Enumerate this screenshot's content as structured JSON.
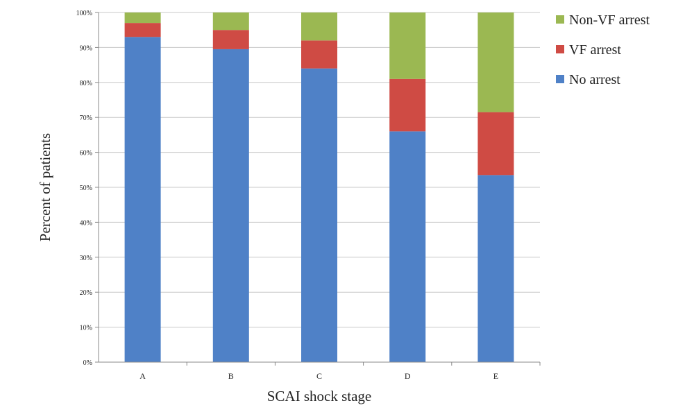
{
  "chart_data": {
    "type": "bar",
    "stacked": true,
    "categories": [
      "A",
      "B",
      "C",
      "D",
      "E"
    ],
    "series": [
      {
        "name": "No arrest",
        "color": "#4f81c7",
        "values": [
          93,
          89.5,
          84,
          66,
          53.5
        ]
      },
      {
        "name": "VF arrest",
        "color": "#cf4b44",
        "values": [
          4,
          5.5,
          8,
          15,
          18
        ]
      },
      {
        "name": "Non-VF arrest",
        "color": "#9bb852",
        "values": [
          3,
          5,
          8,
          19,
          28.5
        ]
      }
    ],
    "xlabel": "SCAI shock stage",
    "ylabel": "Percent of patients",
    "ylim": [
      0,
      100
    ],
    "yticks": [
      "0%",
      "10%",
      "20%",
      "30%",
      "40%",
      "50%",
      "60%",
      "70%",
      "80%",
      "90%",
      "100%"
    ],
    "grid": true,
    "legend_position": "right",
    "legend_order": [
      "Non-VF arrest",
      "VF arrest",
      "No arrest"
    ]
  }
}
